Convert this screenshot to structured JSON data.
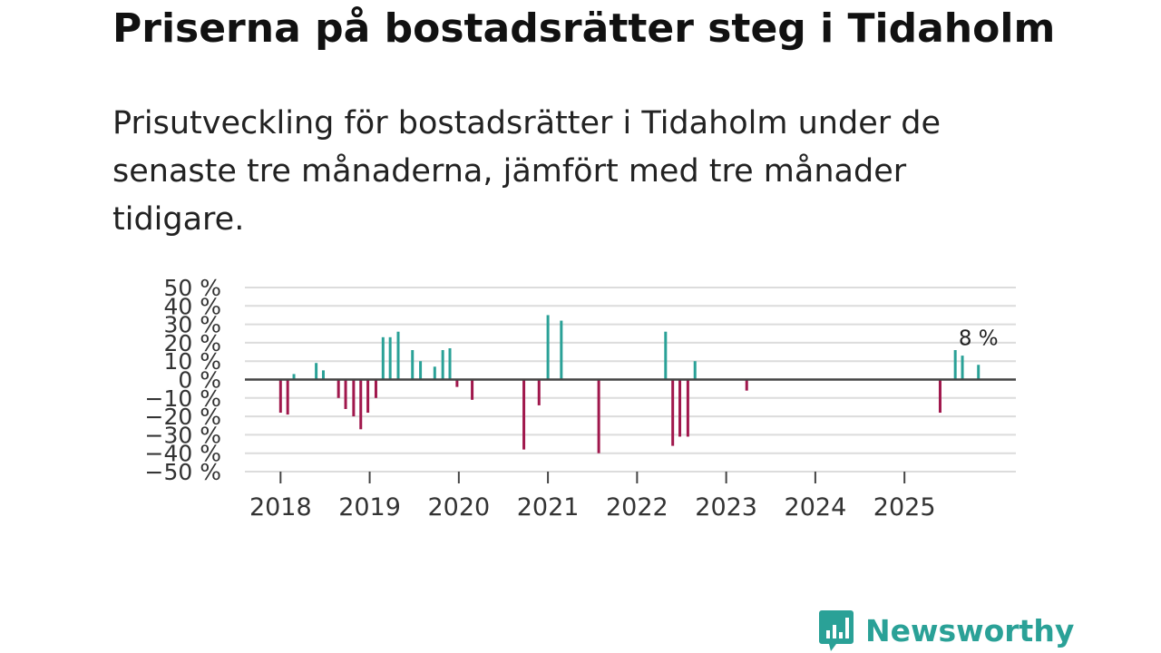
{
  "title": "Priserna på bostadsrätter steg i Tidaholm",
  "subtitle": "Prisutveckling för bostadsrätter i Tidaholm under de senaste tre månaderna, jämfört med tre månader tidigare.",
  "brand": {
    "name": "Newsworthy"
  },
  "colors": {
    "positive": "#2aa197",
    "negative": "#a0174c",
    "grid": "#dcdcdc",
    "zero": "#444444",
    "text": "#333333"
  },
  "chart_data": {
    "type": "bar",
    "title": "Priserna på bostadsrätter steg i Tidaholm",
    "xlabel": "",
    "ylabel": "",
    "ylim": [
      -50,
      50
    ],
    "y_ticks": [
      50,
      40,
      30,
      20,
      10,
      0,
      -10,
      -20,
      -30,
      -40,
      -50
    ],
    "y_tick_labels": [
      "50 %",
      "40 %",
      "30 %",
      "20 %",
      "10 %",
      "0 %",
      "−10 %",
      "−20 %",
      "−30 %",
      "−40 %",
      "−50 %"
    ],
    "x_range": [
      2017.6,
      2026.25
    ],
    "x_ticks": [
      2018,
      2019,
      2020,
      2021,
      2022,
      2023,
      2024,
      2025
    ],
    "x_tick_labels": [
      "2018",
      "2019",
      "2020",
      "2021",
      "2022",
      "2023",
      "2024",
      "2025"
    ],
    "grid": true,
    "annotation": {
      "label": "8 %",
      "x": 2025.83,
      "y": 8
    },
    "series": [
      {
        "name": "Prisutveckling",
        "x": [
          2018.0,
          2018.08,
          2018.15,
          2018.4,
          2018.48,
          2018.65,
          2018.73,
          2018.82,
          2018.9,
          2018.98,
          2019.07,
          2019.15,
          2019.23,
          2019.32,
          2019.48,
          2019.57,
          2019.73,
          2019.82,
          2019.9,
          2019.98,
          2020.15,
          2020.73,
          2020.9,
          2021.0,
          2021.15,
          2021.57,
          2022.32,
          2022.4,
          2022.48,
          2022.57,
          2022.65,
          2023.23,
          2025.4,
          2025.57,
          2025.65,
          2025.83
        ],
        "values": [
          -18,
          -19,
          3,
          9,
          5,
          -10,
          -16,
          -20,
          -27,
          -18,
          -10,
          23,
          23,
          26,
          16,
          10,
          7,
          16,
          17,
          -4,
          -11,
          -38,
          -14,
          35,
          32,
          -40,
          26,
          -36,
          -31,
          -31,
          10,
          -6,
          -18,
          16,
          13,
          8
        ]
      }
    ]
  }
}
